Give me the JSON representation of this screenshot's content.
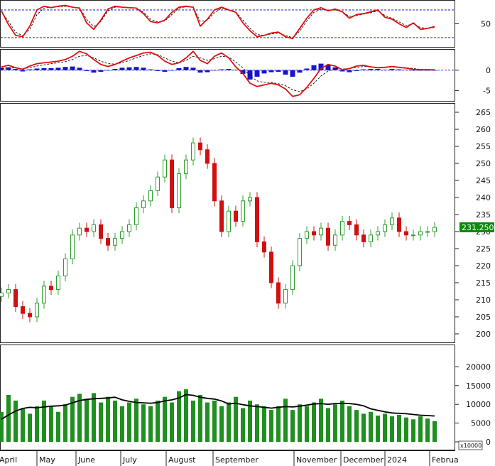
{
  "chart_data": [
    {
      "type": "line",
      "panel": "oscillator",
      "y_ticks": [
        50
      ],
      "guide_levels": [
        80,
        20
      ],
      "ylim": [
        0,
        100
      ],
      "x": [
        0,
        10,
        20,
        30,
        40,
        50,
        60,
        70,
        80,
        90,
        100,
        110,
        120,
        130,
        140,
        150,
        160,
        170,
        180,
        190,
        200,
        210,
        220,
        230,
        240,
        250,
        260,
        270,
        280,
        290,
        300,
        310,
        320,
        330,
        340,
        350,
        360,
        370,
        380,
        390,
        400,
        410,
        420,
        430,
        440,
        450,
        460,
        470,
        480,
        490,
        500,
        510,
        520,
        530,
        540,
        550,
        560,
        570,
        580,
        590,
        600,
        610
      ],
      "series": [
        {
          "color": "#e01010",
          "style": "solid",
          "values": [
            78,
            48,
            25,
            22,
            45,
            80,
            88,
            85,
            88,
            90,
            86,
            84,
            52,
            38,
            58,
            82,
            88,
            86,
            85,
            84,
            72,
            55,
            52,
            58,
            75,
            86,
            88,
            86,
            45,
            60,
            80,
            86,
            80,
            75,
            52,
            35,
            22,
            25,
            30,
            32,
            22,
            18,
            40,
            62,
            80,
            85,
            78,
            82,
            76,
            62,
            70,
            72,
            76,
            80,
            64,
            60,
            50,
            42,
            52,
            38,
            40,
            44
          ]
        },
        {
          "color": "#111111",
          "style": "dashed",
          "values": [
            76,
            55,
            32,
            24,
            38,
            70,
            84,
            86,
            87,
            88,
            86,
            85,
            60,
            44,
            55,
            78,
            86,
            86,
            85,
            84,
            75,
            60,
            54,
            56,
            70,
            84,
            87,
            86,
            55,
            58,
            74,
            84,
            80,
            76,
            58,
            40,
            27,
            25,
            28,
            30,
            25,
            20,
            34,
            56,
            75,
            82,
            79,
            80,
            76,
            66,
            68,
            71,
            74,
            78,
            68,
            62,
            54,
            46,
            50,
            42,
            40,
            42
          ]
        }
      ]
    },
    {
      "type": "bar",
      "panel": "macd",
      "y_ticks": [
        0,
        -5
      ],
      "ylim": [
        -7.5,
        5
      ],
      "x": [
        0,
        10,
        20,
        30,
        40,
        50,
        60,
        70,
        80,
        90,
        100,
        110,
        120,
        130,
        140,
        150,
        160,
        170,
        180,
        190,
        200,
        210,
        220,
        230,
        240,
        250,
        260,
        270,
        280,
        290,
        300,
        310,
        320,
        330,
        340,
        350,
        360,
        370,
        380,
        390,
        400,
        410,
        420,
        430,
        440,
        450,
        460,
        470,
        480,
        490,
        500,
        510,
        520,
        530,
        540,
        550,
        560,
        570,
        580,
        590,
        600,
        610
      ],
      "histogram": [
        0.6,
        0.7,
        0.3,
        -0.3,
        0.2,
        0.4,
        0.5,
        0.5,
        0.6,
        0.8,
        0.9,
        0.6,
        -0.2,
        -0.6,
        -0.4,
        -0.1,
        0.3,
        0.6,
        0.7,
        0.8,
        0.6,
        0.2,
        -0.2,
        -0.4,
        -0.1,
        0.5,
        0.8,
        0.6,
        -0.6,
        -0.5,
        -0.1,
        0.2,
        0.3,
        0.1,
        -0.9,
        -2.3,
        -1.6,
        -0.8,
        -0.5,
        -0.4,
        -1.1,
        -1.6,
        -0.6,
        0.4,
        1.2,
        1.6,
        1.3,
        0.7,
        -0.3,
        -0.5,
        -0.2,
        0.2,
        0.3,
        0.3,
        0.1,
        0.3,
        0.2,
        0.1,
        -0.1,
        -0.1,
        -0.1,
        0.0
      ],
      "series": [
        {
          "color": "#e01010",
          "style": "solid",
          "values": [
            0.8,
            1.2,
            0.6,
            0.2,
            1.0,
            1.6,
            1.8,
            2.0,
            2.2,
            2.6,
            3.4,
            4.6,
            4.0,
            2.6,
            1.4,
            0.9,
            1.4,
            2.2,
            3.0,
            3.6,
            4.2,
            4.4,
            3.6,
            2.2,
            1.4,
            1.8,
            3.0,
            4.6,
            2.4,
            1.6,
            3.4,
            4.2,
            3.0,
            0.8,
            -0.8,
            -3.2,
            -4.0,
            -3.6,
            -3.2,
            -3.6,
            -4.6,
            -6.4,
            -6.0,
            -4.2,
            -2.0,
            0.4,
            1.4,
            1.0,
            0.1,
            0.4,
            1.0,
            1.2,
            0.8,
            0.6,
            0.7,
            0.9,
            0.7,
            0.5,
            0.2,
            0.1,
            0.1,
            0.1
          ]
        },
        {
          "color": "#111111",
          "style": "dashed",
          "values": [
            0.4,
            0.6,
            0.5,
            0.4,
            0.6,
            1.0,
            1.3,
            1.6,
            1.8,
            2.1,
            2.6,
            3.4,
            3.6,
            3.0,
            2.2,
            1.6,
            1.5,
            1.8,
            2.4,
            3.0,
            3.6,
            4.0,
            3.8,
            3.0,
            2.2,
            1.8,
            2.4,
            3.4,
            3.0,
            2.4,
            2.8,
            3.4,
            3.2,
            2.0,
            0.6,
            -1.4,
            -2.6,
            -3.0,
            -3.0,
            -3.3,
            -3.8,
            -4.8,
            -5.2,
            -4.6,
            -3.2,
            -1.4,
            -0.2,
            0.4,
            0.3,
            0.4,
            0.7,
            0.9,
            0.8,
            0.7,
            0.7,
            0.8,
            0.7,
            0.6,
            0.4,
            0.2,
            0.2,
            0.1
          ]
        }
      ]
    },
    {
      "type": "candlestick",
      "panel": "price",
      "y_ticks": [
        200,
        205,
        210,
        215,
        220,
        225,
        230,
        235,
        240,
        245,
        250,
        255,
        260,
        265
      ],
      "ylim": [
        197.5,
        267.5
      ],
      "last_price_label": "231.2500",
      "last_price": 231.25,
      "up_color": "#2e9e2e",
      "down_color": "#d01010",
      "x": [
        0,
        10,
        20,
        30,
        40,
        50,
        60,
        70,
        80,
        90,
        100,
        110,
        120,
        130,
        140,
        150,
        160,
        170,
        180,
        190,
        200,
        210,
        220,
        230,
        240,
        250,
        260,
        270,
        280,
        290,
        300,
        310,
        320,
        330,
        340,
        350,
        360,
        370,
        380,
        390,
        400,
        410,
        420,
        430,
        440,
        450,
        460,
        470,
        480,
        490,
        500,
        510,
        520,
        530,
        540,
        550,
        560,
        570,
        580,
        590,
        600,
        610
      ],
      "close": [
        212,
        213,
        208,
        206,
        205,
        209,
        214,
        213,
        217,
        222,
        229,
        231,
        230,
        232,
        228,
        226,
        228,
        230,
        232,
        237,
        239,
        242,
        246,
        251,
        237,
        247,
        251,
        256,
        254,
        250,
        239,
        230,
        236,
        233,
        239,
        240,
        227,
        224,
        215,
        209,
        213,
        220,
        228,
        230,
        229,
        231,
        226,
        229,
        233,
        232,
        229,
        227,
        229,
        230,
        232,
        234,
        230,
        229,
        229,
        230,
        230,
        231.25
      ]
    },
    {
      "type": "bar",
      "panel": "volume",
      "y_ticks": [
        0,
        5000,
        10000,
        15000,
        20000
      ],
      "ylim": [
        0,
        25000
      ],
      "multiplier_label": "x10000",
      "bar_color": "#1f8f1f",
      "ma_color": "#000000",
      "x": [
        0,
        10,
        20,
        30,
        40,
        50,
        60,
        70,
        80,
        90,
        100,
        110,
        120,
        130,
        140,
        150,
        160,
        170,
        180,
        190,
        200,
        210,
        220,
        230,
        240,
        250,
        260,
        270,
        280,
        290,
        300,
        310,
        320,
        330,
        340,
        350,
        360,
        370,
        380,
        390,
        400,
        410,
        420,
        430,
        440,
        450,
        460,
        470,
        480,
        490,
        500,
        510,
        520,
        530,
        540,
        550,
        560,
        570,
        580,
        590,
        600,
        610
      ],
      "values": [
        8000,
        12500,
        11000,
        9000,
        7500,
        9500,
        11000,
        9500,
        8000,
        10000,
        12000,
        12800,
        11500,
        13000,
        10500,
        12000,
        11000,
        9500,
        10500,
        11500,
        10000,
        9500,
        11000,
        12000,
        10500,
        13500,
        14000,
        11000,
        12500,
        10500,
        11000,
        9500,
        10500,
        12000,
        9000,
        11000,
        10000,
        9500,
        8500,
        9500,
        11500,
        8500,
        10000,
        9500,
        10500,
        11500,
        9000,
        10000,
        11000,
        9500,
        8500,
        7500,
        8000,
        7000,
        7500,
        6800,
        7200,
        6500,
        6000,
        6800,
        6200,
        5500
      ],
      "moving_average": [
        6000,
        7200,
        8200,
        8900,
        9200,
        9100,
        9300,
        9500,
        9600,
        9800,
        10400,
        11000,
        11300,
        11500,
        11600,
        11700,
        11900,
        11200,
        10800,
        10500,
        10400,
        10300,
        10500,
        10900,
        11200,
        11700,
        12600,
        12400,
        11900,
        11600,
        11400,
        10900,
        10100,
        10300,
        9900,
        9600,
        9400,
        9200,
        9000,
        9200,
        9400,
        9300,
        9500,
        9800,
        10100,
        10200,
        10000,
        10200,
        10300,
        10200,
        10000,
        9600,
        8800,
        8400,
        8000,
        7700,
        7600,
        7500,
        7300,
        7100,
        7000,
        6900
      ]
    }
  ],
  "x_axis": {
    "month_labels": [
      {
        "text": "April",
        "x": -6
      },
      {
        "text": "May",
        "x": 50
      },
      {
        "text": "June",
        "x": 105
      },
      {
        "text": "July",
        "x": 168
      },
      {
        "text": "August",
        "x": 232
      },
      {
        "text": "September",
        "x": 298
      },
      {
        "text": "November",
        "x": 412
      },
      {
        "text": "December",
        "x": 478
      },
      {
        "text": "2024",
        "x": 540
      },
      {
        "text": "Februa",
        "x": 603
      }
    ]
  }
}
